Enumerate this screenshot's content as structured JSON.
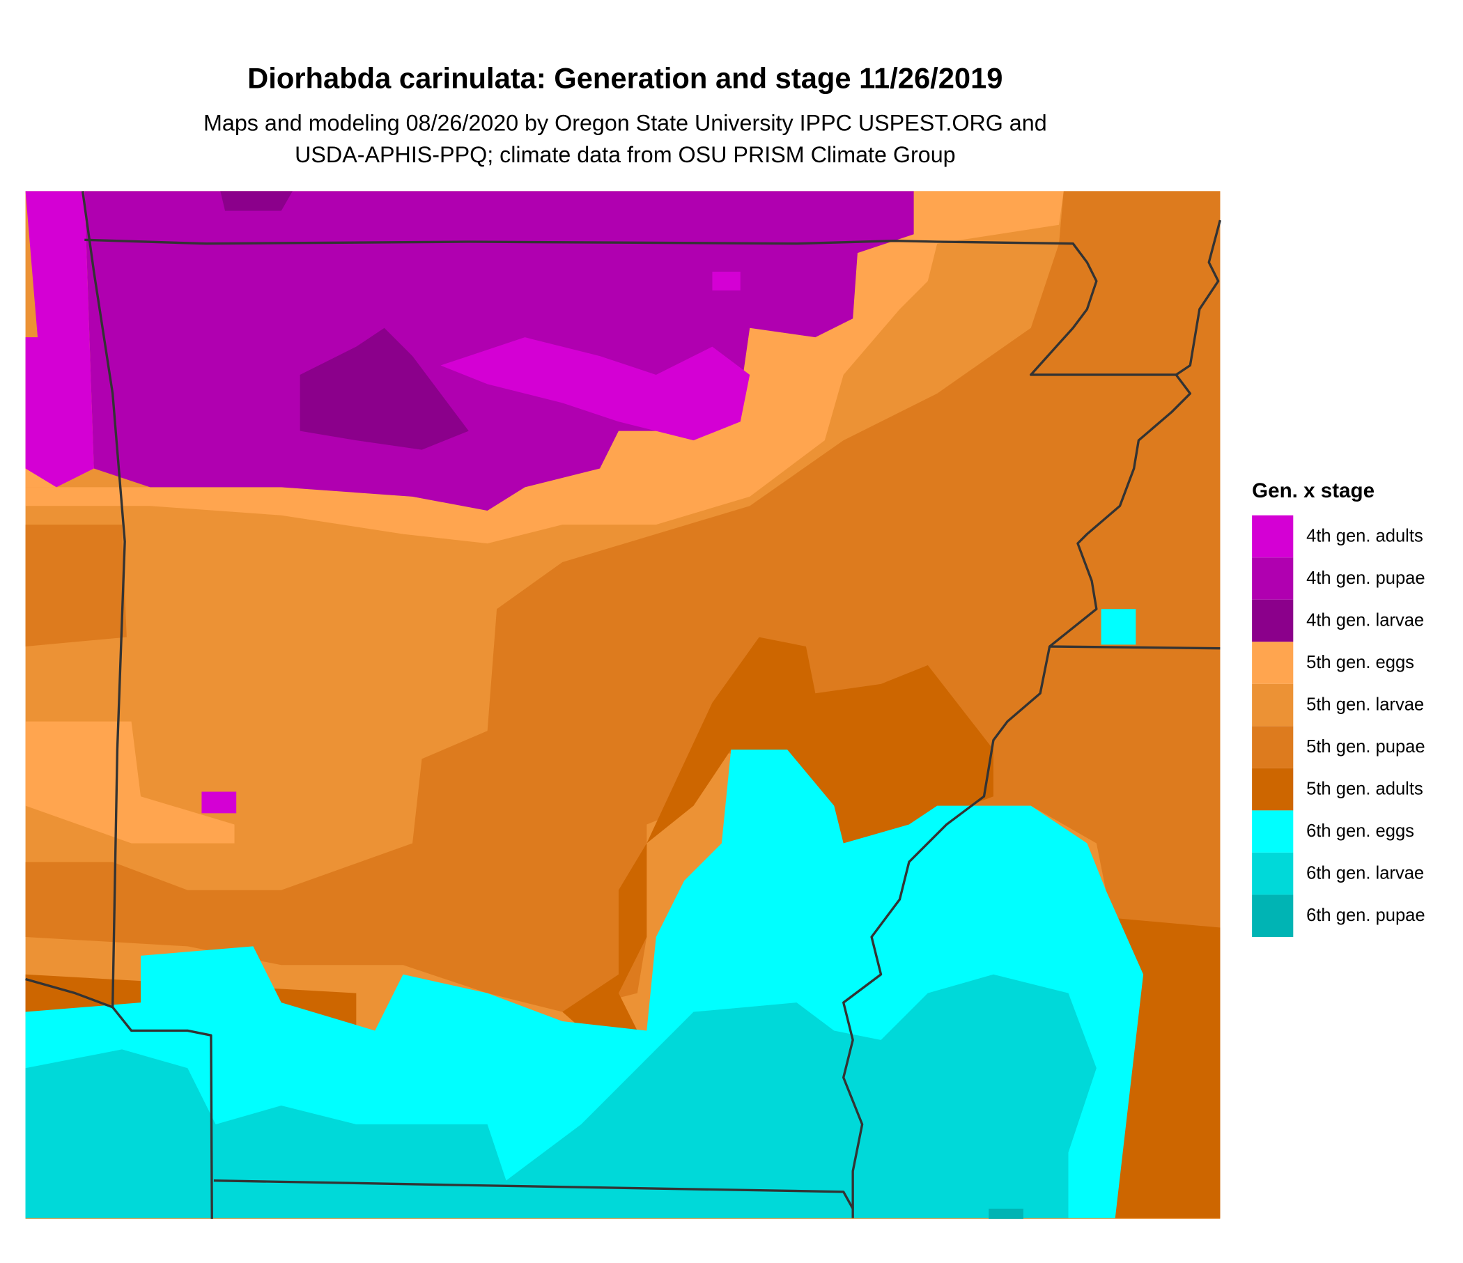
{
  "header": {
    "title": "Diorhabda carinulata: Generation and stage 11/26/2019",
    "subtitle_lines": [
      "Maps and modeling 08/26/2020 by Oregon State University IPPC USPEST.ORG and",
      "USDA-APHIS-PPQ; climate data from OSU PRISM Climate Group"
    ]
  },
  "legend": {
    "title": "Gen. x stage",
    "items": [
      {
        "label": "4th gen. adults",
        "color": "#d400d4"
      },
      {
        "label": "4th gen. pupae",
        "color": "#b000b0"
      },
      {
        "label": "4th gen. larvae",
        "color": "#8b008b"
      },
      {
        "label": "5th gen. eggs",
        "color": "#ffa54f"
      },
      {
        "label": "5th gen. larvae",
        "color": "#ec9235"
      },
      {
        "label": "5th gen. pupae",
        "color": "#dd7b1e"
      },
      {
        "label": "5th gen. adults",
        "color": "#cd6600"
      },
      {
        "label": "6th gen. eggs",
        "color": "#00ffff"
      },
      {
        "label": "6th gen. larvae",
        "color": "#00d9d9"
      },
      {
        "label": "6th gen. pupae",
        "color": "#00b4b4"
      }
    ]
  }
}
